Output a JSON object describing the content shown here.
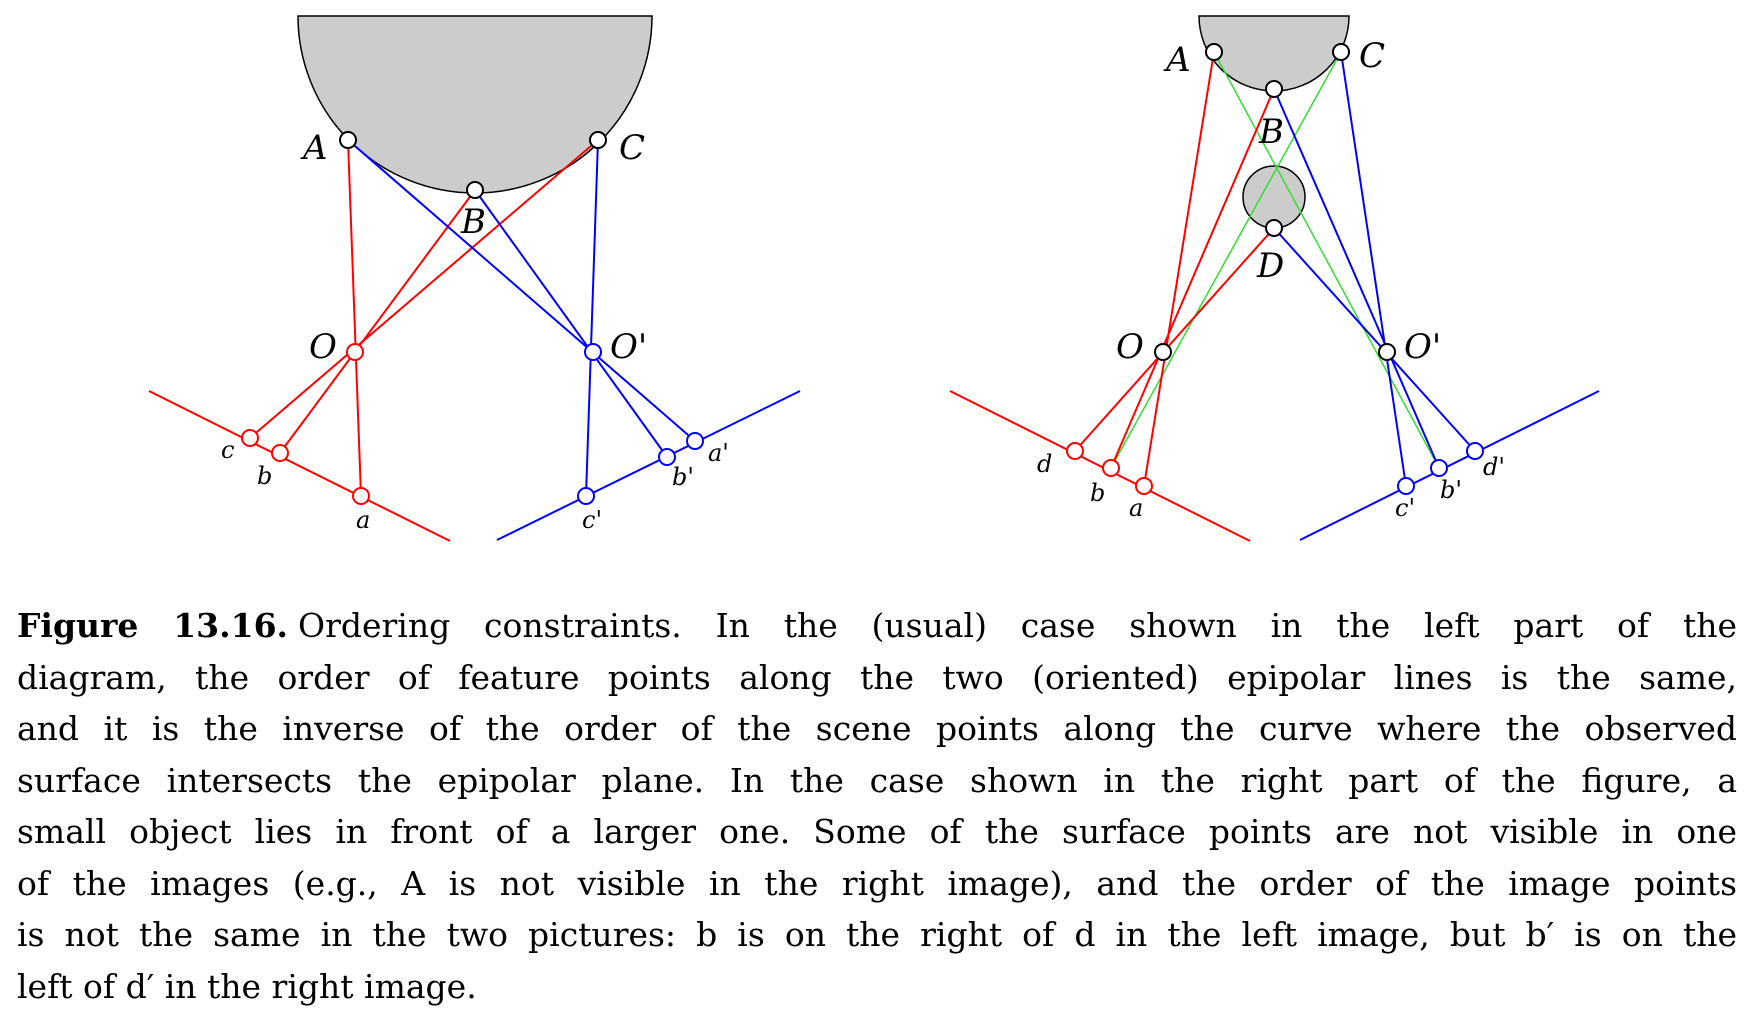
{
  "figure": {
    "left_panel": {
      "scene_points": [
        "A",
        "B",
        "C"
      ],
      "centers": [
        "O",
        "O'"
      ],
      "left_image_points": [
        "c",
        "b",
        "a"
      ],
      "right_image_points": [
        "c'",
        "b'",
        "a'"
      ]
    },
    "right_panel": {
      "scene_points": [
        "A",
        "B",
        "C",
        "D"
      ],
      "centers": [
        "O",
        "O'"
      ],
      "left_image_points": [
        "d",
        "b",
        "a"
      ],
      "right_image_points": [
        "c'",
        "b'",
        "d'"
      ]
    },
    "colors": {
      "left_camera_rays": "#ff0000",
      "right_camera_rays": "#0000ff",
      "occluded_rays": "#33dd33",
      "object_fill": "#cccccc"
    }
  },
  "caption": {
    "label": "Figure 13.16.",
    "lines": [
      "Ordering constraints. In the (usual) case shown in the left part of the",
      "diagram, the order of feature points along the two (oriented) epipolar lines is the same,",
      "and it is the inverse of the order of the scene points along the curve where the observed",
      "surface intersects the epipolar plane. In the case shown in the right part of the figure, a",
      "small object lies in front of a larger one. Some of the surface points are not visible in one",
      "of the images (e.g., A is not visible in the right image), and the order of the image points",
      "is not the same in the two pictures: b is on the right of d in the left image, but b′ is on the",
      "left of d′ in the right image."
    ]
  }
}
